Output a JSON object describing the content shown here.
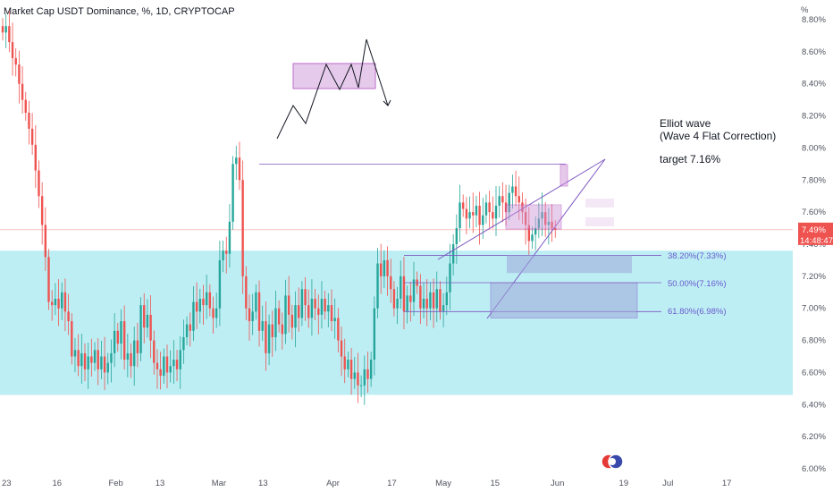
{
  "chart_title": "Market Cap USDT Dominance, %, 1D, CRYPTOCAP",
  "currency_label": "%",
  "chart_data": {
    "type": "candlestick",
    "ylim": [
      6.0,
      8.8
    ],
    "y_ticks": [
      "8.80%",
      "8.60%",
      "8.40%",
      "8.20%",
      "8.00%",
      "7.80%",
      "7.60%",
      "7.40%",
      "7.20%",
      "7.00%",
      "6.80%",
      "6.60%",
      "6.40%",
      "6.20%",
      "6.00%"
    ],
    "y_tick_values": [
      8.8,
      8.6,
      8.4,
      8.2,
      8.0,
      7.8,
      7.6,
      7.4,
      7.2,
      7.0,
      6.8,
      6.6,
      6.4,
      6.2,
      6.0
    ],
    "x_ticks": [
      {
        "label": "23",
        "day": 1
      },
      {
        "label": "16",
        "day": 16
      },
      {
        "label": "Feb",
        "day": 32
      },
      {
        "label": "13",
        "day": 44
      },
      {
        "label": "Mar",
        "day": 60
      },
      {
        "label": "13",
        "day": 72
      },
      {
        "label": "Apr",
        "day": 91
      },
      {
        "label": "17",
        "day": 107
      },
      {
        "label": "May",
        "day": 121
      },
      {
        "label": "15",
        "day": 135
      },
      {
        "label": "Jun",
        "day": 152
      },
      {
        "label": "19",
        "day": 170
      },
      {
        "label": "Jul",
        "day": 182
      },
      {
        "label": "17",
        "day": 198
      }
    ],
    "x_range_days": [
      1,
      214
    ],
    "candle_closes": [
      8.72,
      8.76,
      8.66,
      8.56,
      8.52,
      8.4,
      8.3,
      8.22,
      8.12,
      8.02,
      7.86,
      7.7,
      7.52,
      7.32,
      7.04,
      7.02,
      7.06,
      7.0,
      7.1,
      6.98,
      6.92,
      6.7,
      6.74,
      6.64,
      6.72,
      6.62,
      6.7,
      6.66,
      6.74,
      6.62,
      6.7,
      6.6,
      6.66,
      6.72,
      6.86,
      6.78,
      6.92,
      6.68,
      6.72,
      6.64,
      6.8,
      6.72,
      7.02,
      6.88,
      6.96,
      6.8,
      6.66,
      6.62,
      6.58,
      6.7,
      6.6,
      6.64,
      6.68,
      6.62,
      6.74,
      6.82,
      6.9,
      6.86,
      7.04,
      6.98,
      7.06,
      7.02,
      7.1,
      7.0,
      6.94,
      7.0,
      7.3,
      7.36,
      7.34,
      7.54,
      7.9,
      7.94,
      7.8,
      7.2,
      7.0,
      6.92,
      6.98,
      7.1,
      6.86,
      6.92,
      6.72,
      6.9,
      6.82,
      7.0,
      6.9,
      6.84,
      7.08,
      6.96,
      6.88,
      7.02,
      6.94,
      7.12,
      7.02,
      6.94,
      7.06,
      7.0,
      6.96,
      7.06,
      6.98,
      7.02,
      6.92,
      6.94,
      6.8,
      6.7,
      6.62,
      6.68,
      6.56,
      6.6,
      6.52,
      6.52,
      6.62,
      6.56,
      6.68,
      7.0,
      7.28,
      7.2,
      7.3,
      7.2,
      7.12,
      7.0,
      7.06,
      7.2,
      6.98,
      7.08,
      7.04,
      7.18,
      7.14,
      7.0,
      7.06,
      7.0,
      7.1,
      7.0,
      7.12,
      6.98,
      7.02,
      7.1,
      7.28,
      7.4,
      7.5,
      7.66,
      7.62,
      7.56,
      7.6,
      7.58,
      7.64,
      7.52,
      7.58,
      7.66,
      7.6,
      7.56,
      7.64,
      7.7,
      7.66,
      7.6,
      7.72,
      7.76,
      7.7,
      7.66,
      7.6,
      7.52,
      7.42,
      7.46,
      7.5,
      7.56,
      7.6,
      7.52,
      7.54,
      7.5,
      7.49
    ],
    "current_price": "7.49%",
    "countdown": "14:48:47",
    "annotations": {
      "text_lines": [
        "Elliot wave",
        "(Wave 4 Flat Correction)",
        "target 7.16%"
      ],
      "fib_levels": [
        {
          "label": "38.20%(7.33%)",
          "value": 7.33
        },
        {
          "label": "50.00%(7.16%)",
          "value": 7.16
        },
        {
          "label": "61.80%(6.98%)",
          "value": 6.98
        }
      ],
      "zone_color": "#b2ebf2",
      "zone_range": [
        6.46,
        7.36
      ],
      "up_color": "#26a69a",
      "down_color": "#ef5350",
      "price_tag_color": "#ef5350",
      "fib_color": "#7e57c2"
    }
  }
}
